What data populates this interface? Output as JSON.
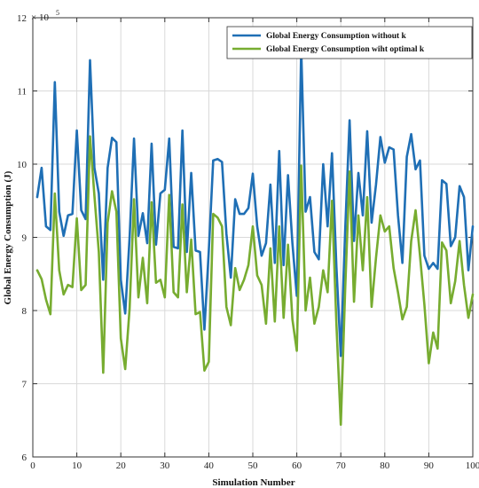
{
  "chart_data": {
    "type": "line",
    "xlabel": "Simulation Number",
    "ylabel": "Global Energy Consumption (J)",
    "xlim": [
      0,
      100
    ],
    "ylim": [
      6,
      12
    ],
    "y_multiplier_base": "× 10",
    "y_multiplier_exp": "5",
    "grid": true,
    "legend_position": "top-right",
    "x_ticks": [
      "0",
      "10",
      "20",
      "30",
      "40",
      "50",
      "60",
      "70",
      "80",
      "90",
      "100"
    ],
    "y_ticks": [
      "6",
      "7",
      "8",
      "9",
      "10",
      "11",
      "12"
    ],
    "x": [
      1,
      2,
      3,
      4,
      5,
      6,
      7,
      8,
      9,
      10,
      11,
      12,
      13,
      14,
      15,
      16,
      17,
      18,
      19,
      20,
      21,
      22,
      23,
      24,
      25,
      26,
      27,
      28,
      29,
      30,
      31,
      32,
      33,
      34,
      35,
      36,
      37,
      38,
      39,
      40,
      41,
      42,
      43,
      44,
      45,
      46,
      47,
      48,
      49,
      50,
      51,
      52,
      53,
      54,
      55,
      56,
      57,
      58,
      59,
      60,
      61,
      62,
      63,
      64,
      65,
      66,
      67,
      68,
      69,
      70,
      71,
      72,
      73,
      74,
      75,
      76,
      77,
      78,
      79,
      80,
      81,
      82,
      83,
      84,
      85,
      86,
      87,
      88,
      89,
      90,
      91,
      92,
      93,
      94,
      95,
      96,
      97,
      98,
      99,
      100
    ],
    "series": [
      {
        "name": "Global Energy Consumption without k",
        "color": "#1f6fb5",
        "values": [
          9.55,
          9.95,
          9.15,
          9.1,
          11.12,
          9.35,
          9.02,
          9.3,
          9.32,
          10.46,
          9.37,
          9.25,
          11.42,
          9.95,
          9.6,
          8.42,
          9.95,
          10.36,
          10.3,
          8.42,
          7.96,
          9.0,
          10.35,
          9.02,
          9.33,
          8.92,
          10.28,
          8.9,
          9.6,
          9.65,
          10.35,
          8.87,
          8.85,
          10.46,
          8.8,
          9.88,
          8.82,
          8.8,
          7.74,
          8.82,
          10.05,
          10.07,
          10.03,
          9.05,
          8.45,
          9.52,
          9.32,
          9.32,
          9.4,
          9.87,
          9.15,
          8.75,
          8.92,
          9.72,
          8.65,
          10.18,
          8.62,
          9.85,
          8.92,
          8.2,
          11.58,
          9.35,
          9.55,
          8.8,
          8.7,
          10.0,
          9.15,
          10.15,
          8.6,
          7.38,
          9.1,
          10.6,
          8.95,
          9.88,
          9.3,
          10.45,
          9.2,
          9.72,
          10.37,
          10.02,
          10.23,
          10.2,
          9.3,
          8.65,
          10.1,
          10.41,
          9.93,
          10.05,
          8.75,
          8.57,
          8.65,
          8.57,
          9.78,
          9.73,
          8.88,
          9.0,
          9.7,
          9.55,
          8.55,
          9.15
        ]
      },
      {
        "name": "Global Energy Consumption wiht optimal k",
        "color": "#77ac30",
        "values": [
          8.55,
          8.43,
          8.15,
          7.95,
          9.6,
          8.55,
          8.22,
          8.35,
          8.32,
          9.26,
          8.28,
          8.35,
          10.38,
          9.57,
          8.8,
          7.15,
          9.2,
          9.63,
          9.35,
          7.62,
          7.2,
          8.03,
          9.52,
          8.18,
          8.72,
          8.1,
          9.48,
          8.38,
          8.42,
          8.18,
          9.58,
          8.25,
          8.18,
          9.45,
          8.25,
          8.97,
          7.95,
          7.98,
          7.18,
          7.3,
          9.32,
          9.27,
          9.15,
          8.05,
          7.8,
          8.58,
          8.28,
          8.42,
          8.62,
          9.15,
          8.48,
          8.35,
          7.82,
          8.85,
          7.85,
          9.15,
          7.9,
          8.9,
          7.88,
          7.45,
          9.98,
          8.0,
          8.45,
          7.82,
          8.05,
          8.55,
          8.25,
          9.5,
          7.82,
          6.44,
          8.3,
          9.9,
          8.12,
          9.3,
          8.55,
          9.55,
          8.05,
          8.72,
          9.3,
          9.08,
          9.15,
          8.58,
          8.25,
          7.88,
          8.05,
          8.95,
          9.37,
          8.75,
          8.08,
          7.28,
          7.7,
          7.48,
          8.93,
          8.82,
          8.1,
          8.4,
          8.95,
          8.35,
          7.9,
          8.22
        ]
      }
    ]
  }
}
